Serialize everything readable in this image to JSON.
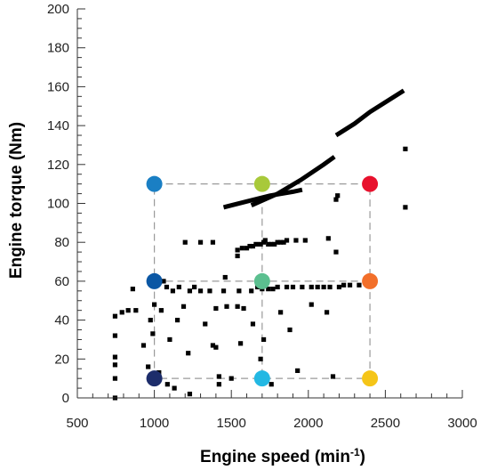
{
  "chart_data": {
    "type": "scatter",
    "title": "",
    "xlabel": "Engine speed (min",
    "xlabel_sup": "-1",
    "xlabel_suffix": ")",
    "ylabel": "Engine torque (Nm)",
    "xlim": [
      500,
      3000
    ],
    "ylim": [
      0,
      200
    ],
    "x_ticks": [
      500,
      1000,
      1500,
      2000,
      2500,
      3000
    ],
    "y_ticks": [
      0,
      20,
      40,
      60,
      80,
      100,
      120,
      140,
      160,
      180,
      200
    ],
    "x_minor_step": 100,
    "y_minor_step": 5,
    "grid": false,
    "operating_points": [
      [
        745,
        0
      ],
      [
        745,
        32
      ],
      [
        745,
        42
      ],
      [
        745,
        21
      ],
      [
        745,
        17
      ],
      [
        745,
        10
      ],
      [
        790,
        44
      ],
      [
        830,
        45
      ],
      [
        860,
        56
      ],
      [
        880,
        45
      ],
      [
        930,
        27
      ],
      [
        960,
        16
      ],
      [
        975,
        40
      ],
      [
        990,
        33
      ],
      [
        1000,
        9
      ],
      [
        1000,
        48
      ],
      [
        1030,
        13
      ],
      [
        1045,
        45
      ],
      [
        1060,
        60
      ],
      [
        1080,
        57
      ],
      [
        1085,
        7
      ],
      [
        1100,
        30
      ],
      [
        1120,
        55
      ],
      [
        1130,
        5
      ],
      [
        1150,
        40
      ],
      [
        1160,
        57
      ],
      [
        1190,
        47
      ],
      [
        1200,
        80
      ],
      [
        1220,
        23
      ],
      [
        1230,
        2
      ],
      [
        1230,
        55
      ],
      [
        1260,
        57
      ],
      [
        1300,
        55
      ],
      [
        1300,
        80
      ],
      [
        1330,
        38
      ],
      [
        1360,
        55
      ],
      [
        1380,
        27
      ],
      [
        1380,
        80
      ],
      [
        1400,
        46
      ],
      [
        1400,
        26
      ],
      [
        1420,
        11
      ],
      [
        1420,
        7
      ],
      [
        1450,
        55
      ],
      [
        1460,
        62
      ],
      [
        1470,
        47
      ],
      [
        1500,
        10
      ],
      [
        1540,
        47
      ],
      [
        1540,
        76
      ],
      [
        1540,
        73
      ],
      [
        1550,
        55
      ],
      [
        1560,
        28
      ],
      [
        1570,
        77
      ],
      [
        1580,
        46
      ],
      [
        1600,
        77
      ],
      [
        1620,
        78
      ],
      [
        1630,
        55
      ],
      [
        1640,
        78
      ],
      [
        1640,
        38
      ],
      [
        1660,
        79
      ],
      [
        1670,
        57
      ],
      [
        1690,
        79
      ],
      [
        1690,
        20
      ],
      [
        1700,
        56
      ],
      [
        1710,
        80
      ],
      [
        1710,
        30
      ],
      [
        1720,
        81
      ],
      [
        1740,
        56
      ],
      [
        1740,
        79
      ],
      [
        1760,
        79
      ],
      [
        1760,
        7
      ],
      [
        1770,
        56
      ],
      [
        1780,
        79
      ],
      [
        1800,
        57
      ],
      [
        1800,
        80
      ],
      [
        1820,
        80
      ],
      [
        1820,
        44
      ],
      [
        1840,
        80
      ],
      [
        1860,
        57
      ],
      [
        1860,
        81
      ],
      [
        1880,
        35
      ],
      [
        1900,
        57
      ],
      [
        1920,
        81
      ],
      [
        1930,
        14
      ],
      [
        1960,
        57
      ],
      [
        1980,
        81
      ],
      [
        2020,
        57
      ],
      [
        2020,
        48
      ],
      [
        2060,
        57
      ],
      [
        2100,
        57
      ],
      [
        2120,
        44
      ],
      [
        2130,
        82
      ],
      [
        2140,
        57
      ],
      [
        2160,
        11
      ],
      [
        2180,
        75
      ],
      [
        2180,
        102
      ],
      [
        2190,
        104
      ],
      [
        2200,
        57
      ],
      [
        2230,
        58
      ],
      [
        2270,
        58
      ],
      [
        2330,
        58
      ],
      [
        2630,
        128
      ],
      [
        2630,
        98
      ]
    ],
    "curves": [
      [
        [
          1450,
          98
        ],
        [
          1600,
          101
        ],
        [
          1750,
          104
        ],
        [
          1900,
          106
        ],
        [
          1960,
          107
        ]
      ],
      [
        [
          1630,
          99
        ],
        [
          1800,
          105
        ],
        [
          1950,
          112
        ],
        [
          2100,
          120
        ],
        [
          2170,
          124
        ]
      ],
      [
        [
          2180,
          135
        ],
        [
          2300,
          141
        ],
        [
          2400,
          147
        ],
        [
          2500,
          152
        ],
        [
          2620,
          158
        ]
      ]
    ],
    "reference_box": {
      "x": [
        1000,
        2400
      ],
      "y": [
        10,
        110
      ]
    },
    "test_points": [
      {
        "x": 1000,
        "y": 110,
        "color": "#1a7fc4"
      },
      {
        "x": 1700,
        "y": 110,
        "color": "#a8c93a"
      },
      {
        "x": 2400,
        "y": 110,
        "color": "#e8112d"
      },
      {
        "x": 1000,
        "y": 60,
        "color": "#0b57a4"
      },
      {
        "x": 1700,
        "y": 60,
        "color": "#5bbf8f"
      },
      {
        "x": 2400,
        "y": 60,
        "color": "#f26f2a"
      },
      {
        "x": 1000,
        "y": 10,
        "color": "#1d2d6b"
      },
      {
        "x": 1700,
        "y": 10,
        "color": "#23b8e3"
      },
      {
        "x": 2400,
        "y": 10,
        "color": "#f5c518"
      }
    ]
  }
}
